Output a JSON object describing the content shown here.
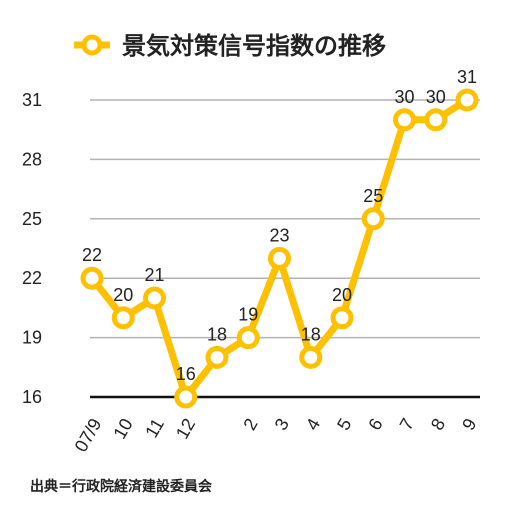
{
  "chart_data": {
    "type": "line",
    "title": "景気対策信号指数の推移",
    "categories": [
      "07/9",
      "10",
      "11",
      "12",
      "",
      "2",
      "3",
      "4",
      "5",
      "6",
      "7",
      "8",
      "9"
    ],
    "series": [
      {
        "name": "景気対策信号指数",
        "values": [
          22,
          20,
          21,
          16,
          18,
          19,
          23,
          18,
          20,
          25,
          30,
          30,
          31
        ]
      }
    ],
    "y_ticks": [
      16,
      19,
      22,
      25,
      28,
      31
    ],
    "ylim": [
      16,
      31
    ],
    "grid": true,
    "legend": "top",
    "line_color": "#FFC000"
  },
  "source": "出典＝行政院経済建設委員会"
}
